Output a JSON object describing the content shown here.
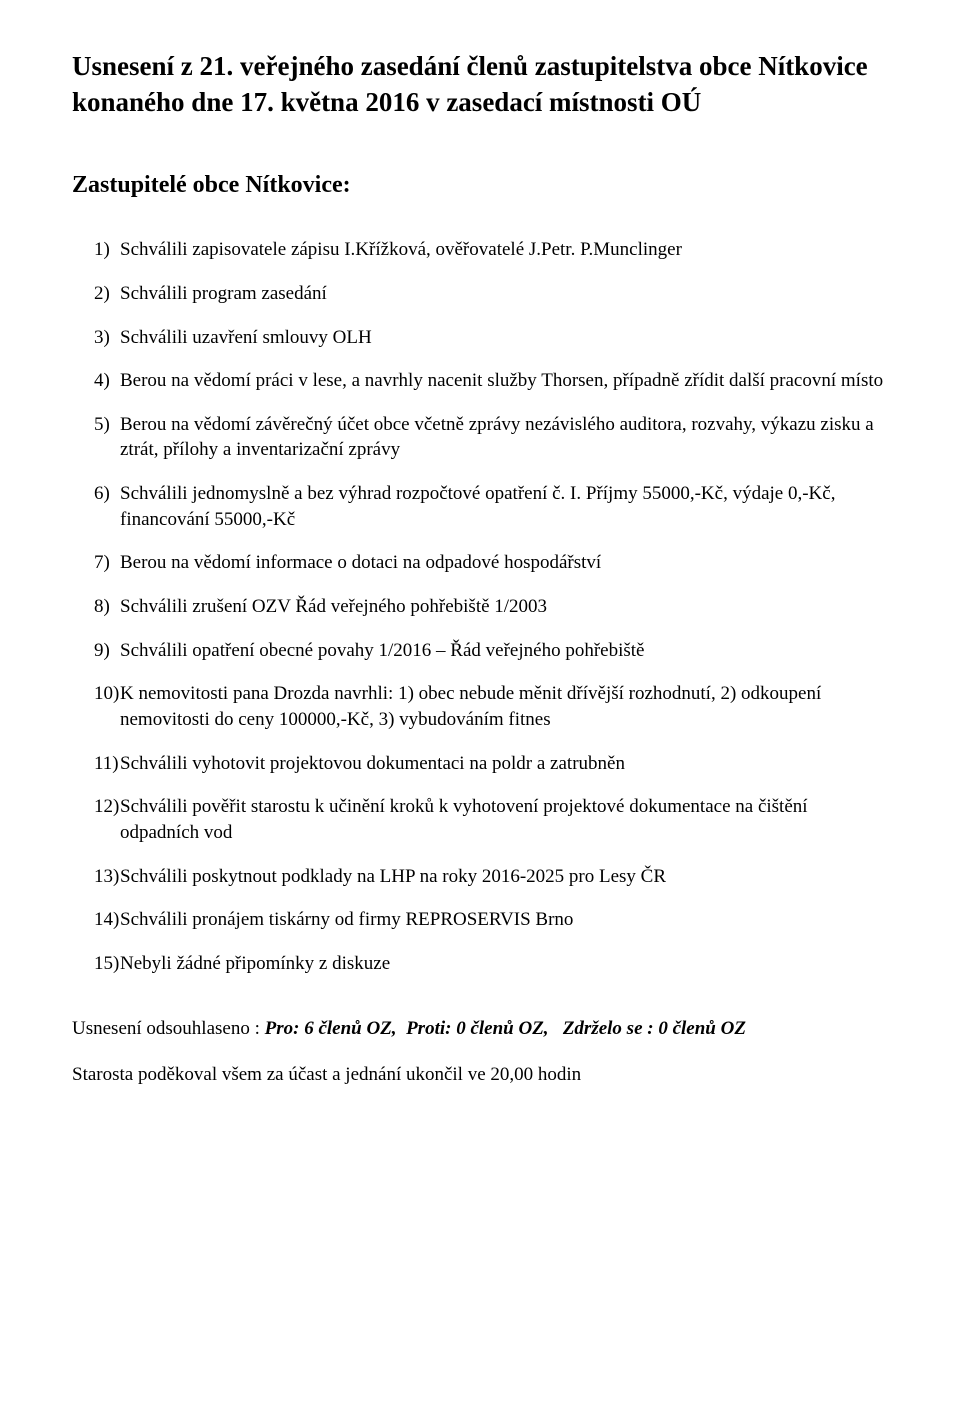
{
  "title": "Usnesení z 21. veřejného zasedání členů zastupitelstva obce Nítkovice konaného dne 17. května 2016 v zasedací místnosti OÚ",
  "subtitle": "Zastupitelé obce Nítkovice:",
  "items": [
    "Schválili zapisovatele zápisu I.Křížková, ověřovatelé J.Petr. P.Munclinger",
    "Schválili program zasedání",
    "Schválili uzavření smlouvy OLH",
    "Berou na vědomí práci v lese, a navrhly nacenit služby Thorsen, případně zřídit další pracovní místo",
    "Berou na vědomí závěrečný účet obce včetně zprávy nezávislého auditora, rozvahy, výkazu zisku a ztrát, přílohy a inventarizační zprávy",
    "Schválili jednomyslně a bez výhrad rozpočtové opatření č. I. Příjmy 55000,-Kč, výdaje 0,-Kč, financování 55000,-Kč",
    "Berou na vědomí informace o dotaci na odpadové hospodářství",
    "Schválili zrušení OZV Řád veřejného pohřebiště 1/2003",
    "Schválili opatření obecné povahy 1/2016 – Řád veřejného pohřebiště",
    "K nemovitosti pana Drozda navrhli: 1) obec nebude měnit dřívější rozhodnutí, 2) odkoupení nemovitosti do ceny 100000,-Kč, 3) vybudováním fitnes",
    "Schválili vyhotovit projektovou dokumentaci na poldr a zatrubněn",
    "Schválili pověřit starostu k učinění kroků k vyhotovení projektové dokumentace na čištění odpadních vod",
    "Schválili poskytnout podklady na LHP na roky 2016-2025 pro Lesy ČR",
    "Schválili pronájem tiskárny od firmy REPROSERVIS Brno",
    "Nebyli žádné připomínky z diskuze"
  ],
  "footer": {
    "prefix": "Usnesení odsouhlaseno : ",
    "pro": "Pro: 6 členů OZ,",
    "proti": "Proti: 0 členů OZ,",
    "zdrzelo": "Zdrželo se : 0 členů OZ",
    "closing": "Starosta poděkoval všem za účast a jednání ukončil ve 20,00 hodin"
  }
}
